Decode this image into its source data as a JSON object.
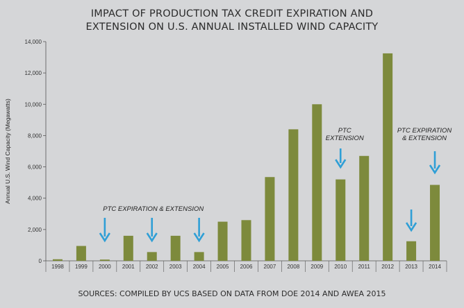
{
  "title_line1": "IMPACT OF PRODUCTION TAX CREDIT EXPIRATION AND",
  "title_line2": "EXTENSION ON U.S. ANNUAL INSTALLED WIND CAPACITY",
  "source": "SOURCES: COMPILED BY UCS BASED ON DATA FROM DOE 2014 AND AWEA 2015",
  "colors": {
    "background": "#d5d6d8",
    "bar": "#7d8a3c",
    "arrow": "#2f9fd6"
  },
  "annotations": [
    {
      "text_lines": [
        "PTC EXPIRATION & EXTENSION"
      ],
      "years": [
        "2000",
        "2002",
        "2004"
      ]
    },
    {
      "text_lines": [
        "PTC",
        "EXTENSION"
      ],
      "years": [
        "2010"
      ]
    },
    {
      "text_lines": [
        "PTC EXPIRATION",
        "& EXTENSION"
      ],
      "years": [
        "2013",
        "2014"
      ]
    }
  ],
  "chart_data": {
    "type": "bar",
    "title": "IMPACT OF PRODUCTION TAX CREDIT EXPIRATION AND EXTENSION ON U.S. ANNUAL INSTALLED WIND CAPACITY",
    "xlabel": "",
    "ylabel": "Annual U.S. Wind Capacity (Megawatts)",
    "ylim": [
      0,
      14000
    ],
    "yticks": [
      0,
      2000,
      4000,
      6000,
      8000,
      10000,
      12000,
      14000
    ],
    "ytick_labels": [
      "0",
      "2,000",
      "4,000",
      "6,000",
      "8,000",
      "10,000",
      "12,000",
      "14,000"
    ],
    "categories": [
      "1998",
      "1999",
      "2000",
      "2001",
      "2002",
      "2003",
      "2004",
      "2005",
      "2006",
      "2007",
      "2008",
      "2009",
      "2010",
      "2011",
      "2012",
      "2013",
      "2014"
    ],
    "values": [
      100,
      950,
      80,
      1600,
      560,
      1600,
      560,
      2500,
      2600,
      5350,
      8400,
      10000,
      5200,
      6700,
      13250,
      1250,
      4850
    ],
    "grid": false,
    "legend": "none"
  }
}
